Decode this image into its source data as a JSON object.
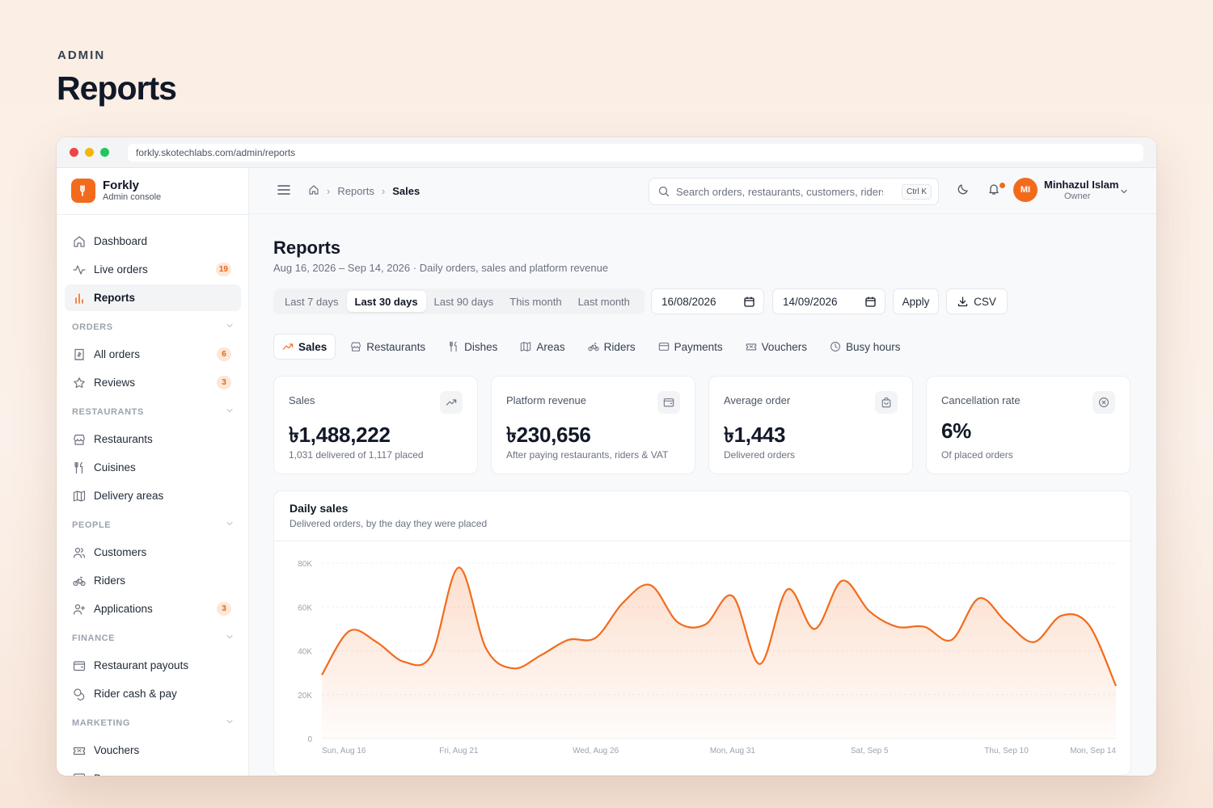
{
  "page": {
    "eyebrow": "ADMIN",
    "heading": "Reports"
  },
  "browser": {
    "url": "forkly.skotechlabs.com/admin/reports"
  },
  "brand": {
    "name": "Forkly",
    "subtitle": "Admin console",
    "color": "#f26b1d"
  },
  "sidebar": {
    "top_items": [
      {
        "label": "Dashboard",
        "icon": "home-icon"
      },
      {
        "label": "Live orders",
        "icon": "activity-icon",
        "badge": "19"
      },
      {
        "label": "Reports",
        "icon": "bar-chart-icon",
        "active": true
      }
    ],
    "groups": [
      {
        "title": "ORDERS",
        "items": [
          {
            "label": "All orders",
            "icon": "receipt-icon",
            "badge": "6"
          },
          {
            "label": "Reviews",
            "icon": "star-icon",
            "badge": "3"
          }
        ]
      },
      {
        "title": "RESTAURANTS",
        "items": [
          {
            "label": "Restaurants",
            "icon": "store-icon"
          },
          {
            "label": "Cuisines",
            "icon": "utensils-icon"
          },
          {
            "label": "Delivery areas",
            "icon": "map-icon"
          }
        ]
      },
      {
        "title": "PEOPLE",
        "items": [
          {
            "label": "Customers",
            "icon": "users-icon"
          },
          {
            "label": "Riders",
            "icon": "bike-icon"
          },
          {
            "label": "Applications",
            "icon": "user-plus-icon",
            "badge": "3"
          }
        ]
      },
      {
        "title": "FINANCE",
        "items": [
          {
            "label": "Restaurant payouts",
            "icon": "wallet-icon"
          },
          {
            "label": "Rider cash & pay",
            "icon": "coins-icon"
          }
        ]
      },
      {
        "title": "MARKETING",
        "items": [
          {
            "label": "Vouchers",
            "icon": "ticket-icon"
          },
          {
            "label": "Banners",
            "icon": "image-icon"
          }
        ]
      }
    ]
  },
  "topbar": {
    "breadcrumb": [
      "Reports",
      "Sales"
    ],
    "search_placeholder": "Search orders, restaurants, customers, riders",
    "search_shortcut": "Ctrl K",
    "user": {
      "initials": "MI",
      "name": "Minhazul Islam",
      "role": "Owner"
    }
  },
  "header": {
    "title": "Reports",
    "subtitle": "Aug 16, 2026 – Sep 14, 2026 · Daily orders, sales and platform revenue"
  },
  "filters": {
    "ranges": [
      "Last 7 days",
      "Last 30 days",
      "Last 90 days",
      "This month",
      "Last month"
    ],
    "active_range": "Last 30 days",
    "date_from": "16/08/2026",
    "date_to": "14/09/2026",
    "apply_label": "Apply",
    "csv_label": "CSV"
  },
  "tabs": [
    {
      "label": "Sales",
      "icon": "trending-up-icon",
      "active": true
    },
    {
      "label": "Restaurants",
      "icon": "store-icon"
    },
    {
      "label": "Dishes",
      "icon": "utensils-icon"
    },
    {
      "label": "Areas",
      "icon": "map-icon"
    },
    {
      "label": "Riders",
      "icon": "bike-icon"
    },
    {
      "label": "Payments",
      "icon": "credit-card-icon"
    },
    {
      "label": "Vouchers",
      "icon": "ticket-icon"
    },
    {
      "label": "Busy hours",
      "icon": "clock-icon"
    }
  ],
  "stats": [
    {
      "label": "Sales",
      "value": "৳1,488,222",
      "note": "1,031 delivered of 1,117 placed",
      "icon": "trending-up-icon"
    },
    {
      "label": "Platform revenue",
      "value": "৳230,656",
      "note": "After paying restaurants, riders & VAT",
      "icon": "wallet-icon"
    },
    {
      "label": "Average order",
      "value": "৳1,443",
      "note": "Delivered orders",
      "icon": "bag-icon"
    },
    {
      "label": "Cancellation rate",
      "value": "6%",
      "note": "Of placed orders",
      "icon": "x-circle-icon"
    }
  ],
  "chart_data": {
    "type": "area",
    "title": "Daily sales",
    "subtitle": "Delivered orders, by the day they were placed",
    "x": [
      "Sun, Aug 16",
      "Mon, Aug 17",
      "Tue, Aug 18",
      "Wed, Aug 19",
      "Thu, Aug 20",
      "Fri, Aug 21",
      "Sat, Aug 22",
      "Sun, Aug 23",
      "Mon, Aug 24",
      "Tue, Aug 25",
      "Wed, Aug 26",
      "Thu, Aug 27",
      "Fri, Aug 28",
      "Sat, Aug 29",
      "Sun, Aug 30",
      "Mon, Aug 31",
      "Tue, Sep 1",
      "Wed, Sep 2",
      "Thu, Sep 3",
      "Fri, Sep 4",
      "Sat, Sep 5",
      "Sun, Sep 6",
      "Mon, Sep 7",
      "Tue, Sep 8",
      "Wed, Sep 9",
      "Thu, Sep 10",
      "Fri, Sep 11",
      "Sat, Sep 12",
      "Sun, Sep 13",
      "Mon, Sep 14"
    ],
    "x_tick_labels": [
      "Sun, Aug 16",
      "Fri, Aug 21",
      "Wed, Aug 26",
      "Mon, Aug 31",
      "Sat, Sep 5",
      "Thu, Sep 10",
      "Mon, Sep 14"
    ],
    "series": [
      {
        "values": [
          29000,
          49000,
          44000,
          35000,
          38000,
          78000,
          41000,
          32000,
          38000,
          45000,
          46000,
          62000,
          70000,
          53000,
          52000,
          65000,
          34000,
          68000,
          50000,
          72000,
          58000,
          51000,
          51000,
          45000,
          64000,
          53000,
          44000,
          56000,
          52000,
          24000
        ]
      }
    ],
    "ylim": [
      0,
      80000
    ],
    "y_ticks": [
      "0",
      "20K",
      "40K",
      "60K",
      "80K"
    ],
    "color": "#f26b1d",
    "grid": true
  }
}
